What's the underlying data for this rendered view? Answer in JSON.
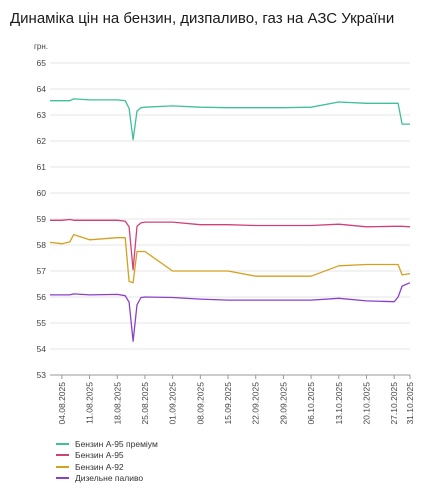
{
  "title": "Динаміка цін на бензин, дизпаливо, газ на АЗС України",
  "chart_data": {
    "type": "line",
    "title": "Динаміка цін на бензин, дизпаливо, газ на АЗС України",
    "ylabel": "грн.",
    "xlabel": "",
    "ylim": [
      53,
      65
    ],
    "yticks": [
      53,
      54,
      55,
      56,
      57,
      58,
      59,
      60,
      61,
      62,
      63,
      64,
      65
    ],
    "grid": "horizontal",
    "legend_position": "bottom-left",
    "x_ticks": [
      "04.08.2025",
      "11.08.2025",
      "18.08.2025",
      "25.08.2025",
      "01.09.2025",
      "08.09.2025",
      "15.09.2025",
      "22.09.2025",
      "29.09.2025",
      "06.10.2025",
      "13.10.2025",
      "20.10.2025",
      "27.10.2025",
      "31.10.2025"
    ],
    "x": [
      "01.08.2025",
      "04.08.2025",
      "06.08.2025",
      "07.08.2025",
      "11.08.2025",
      "18.08.2025",
      "20.08.2025",
      "21.08.2025",
      "22.08.2025",
      "23.08.2025",
      "24.08.2025",
      "25.08.2025",
      "01.09.2025",
      "08.09.2025",
      "15.09.2025",
      "22.09.2025",
      "29.09.2025",
      "06.10.2025",
      "13.10.2025",
      "20.10.2025",
      "27.10.2025",
      "28.10.2025",
      "29.10.2025",
      "31.10.2025"
    ],
    "series": [
      {
        "name": "Бензин А-95 преміум",
        "color": "#3fbf9a",
        "values": [
          63.55,
          63.55,
          63.55,
          63.62,
          63.58,
          63.58,
          63.55,
          63.25,
          62.05,
          63.15,
          63.28,
          63.3,
          63.35,
          63.3,
          63.28,
          63.28,
          63.28,
          63.3,
          63.5,
          63.45,
          63.45,
          63.45,
          62.65,
          62.65
        ]
      },
      {
        "name": "Бензин А-95",
        "color": "#d0407a",
        "values": [
          58.95,
          58.95,
          58.98,
          58.95,
          58.95,
          58.95,
          58.92,
          58.7,
          57.05,
          58.72,
          58.85,
          58.88,
          58.88,
          58.78,
          58.78,
          58.75,
          58.75,
          58.75,
          58.8,
          58.7,
          58.72,
          58.72,
          58.72,
          58.7
        ]
      },
      {
        "name": "Бензин А-92",
        "color": "#d4a020",
        "values": [
          58.1,
          58.05,
          58.12,
          58.4,
          58.2,
          58.28,
          58.28,
          56.6,
          56.55,
          57.75,
          57.75,
          57.75,
          57.0,
          57.0,
          57.0,
          56.8,
          56.8,
          56.8,
          57.2,
          57.25,
          57.25,
          57.25,
          56.85,
          56.9
        ]
      },
      {
        "name": "Дизельне паливо",
        "color": "#8b40c8",
        "values": [
          56.08,
          56.08,
          56.08,
          56.12,
          56.08,
          56.1,
          56.05,
          55.8,
          54.3,
          55.7,
          55.98,
          56.0,
          55.98,
          55.92,
          55.88,
          55.88,
          55.88,
          55.88,
          55.95,
          55.85,
          55.82,
          56.0,
          56.42,
          56.55
        ]
      }
    ]
  }
}
